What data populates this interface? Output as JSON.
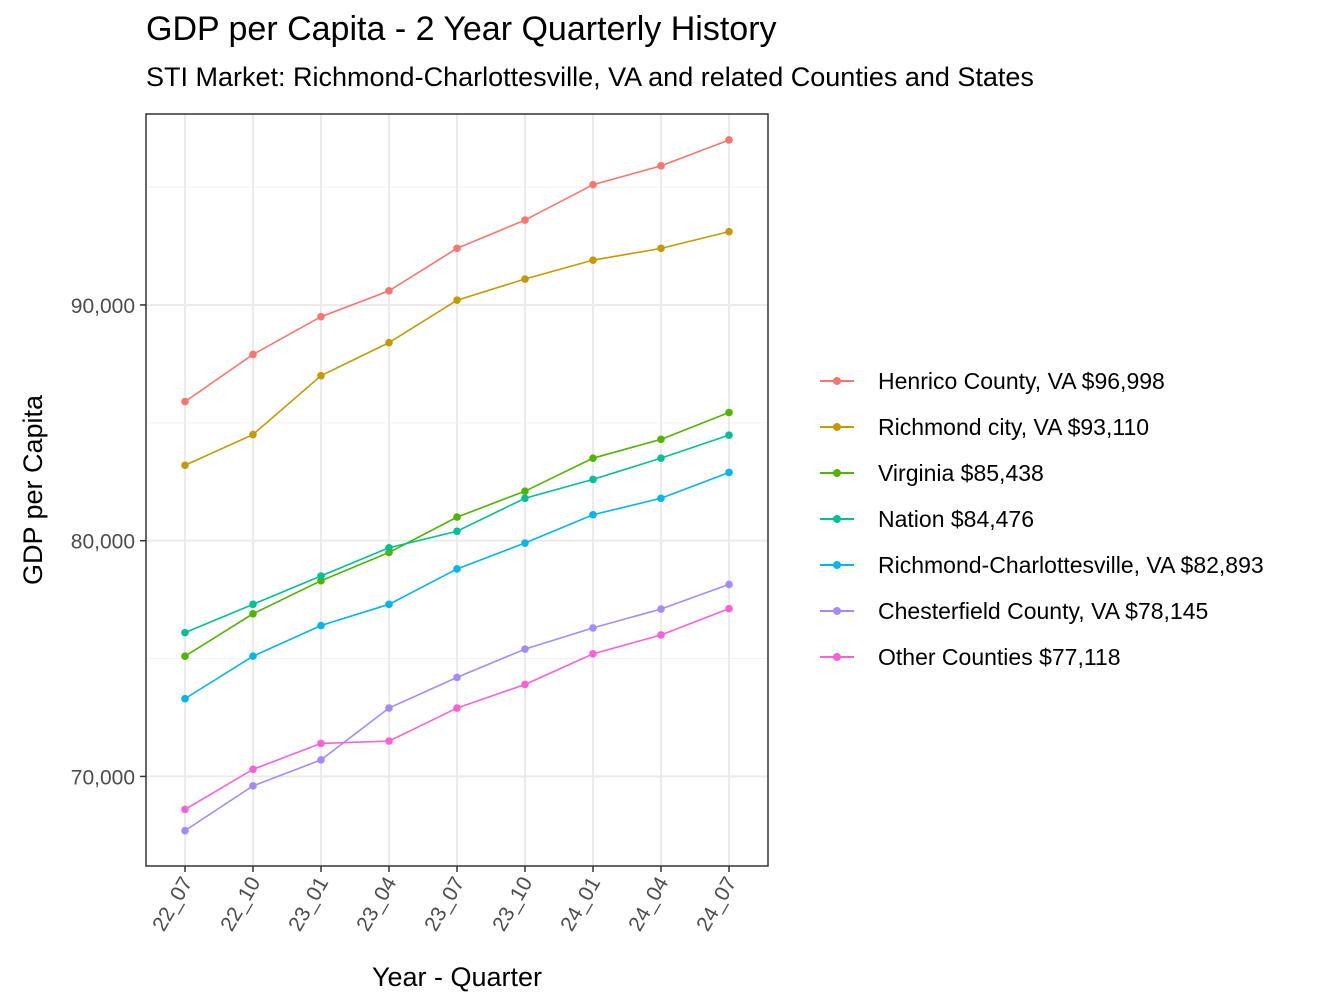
{
  "chart_data": {
    "type": "line",
    "title": "GDP per Capita - 2 Year Quarterly History",
    "subtitle": "STI Market: Richmond-Charlottesville, VA and related Counties and States",
    "xlabel": "Year - Quarter",
    "ylabel": "GDP per Capita",
    "categories": [
      "22_07",
      "22_10",
      "23_01",
      "23_04",
      "23_07",
      "23_10",
      "24_01",
      "24_04",
      "24_07"
    ],
    "ylim": [
      66200,
      98100
    ],
    "yticks": [
      70000,
      80000,
      90000
    ],
    "ytick_labels": [
      "70,000",
      "80,000",
      "90,000"
    ],
    "grid": true,
    "legend_position": "right",
    "series": [
      {
        "name": "Henrico County, VA $96,998",
        "color": "#F8766D",
        "values": [
          85900,
          87900,
          89500,
          90600,
          92400,
          93600,
          95100,
          95900,
          96998
        ]
      },
      {
        "name": "Richmond city, VA $93,110",
        "color": "#C49A00",
        "values": [
          83200,
          84500,
          87000,
          88400,
          90200,
          91100,
          91900,
          92400,
          93110
        ]
      },
      {
        "name": "Virginia $85,438",
        "color": "#53B400",
        "values": [
          75100,
          76900,
          78300,
          79500,
          81000,
          82100,
          83500,
          84300,
          85438
        ]
      },
      {
        "name": "Nation $84,476",
        "color": "#00C094",
        "values": [
          76100,
          77300,
          78500,
          79700,
          80400,
          81800,
          82600,
          83500,
          84476
        ]
      },
      {
        "name": "Richmond-Charlottesville, VA $82,893",
        "color": "#00B6EB",
        "values": [
          73300,
          75100,
          76400,
          77300,
          78800,
          79900,
          81100,
          81800,
          82893
        ]
      },
      {
        "name": "Chesterfield County, VA $78,145",
        "color": "#A58AFF",
        "values": [
          67700,
          69600,
          70700,
          72900,
          74200,
          75400,
          76300,
          77100,
          78145
        ]
      },
      {
        "name": "Other Counties $77,118",
        "color": "#FB61D7",
        "values": [
          68600,
          70300,
          71400,
          71500,
          72900,
          73900,
          75200,
          76000,
          77118
        ]
      }
    ]
  }
}
